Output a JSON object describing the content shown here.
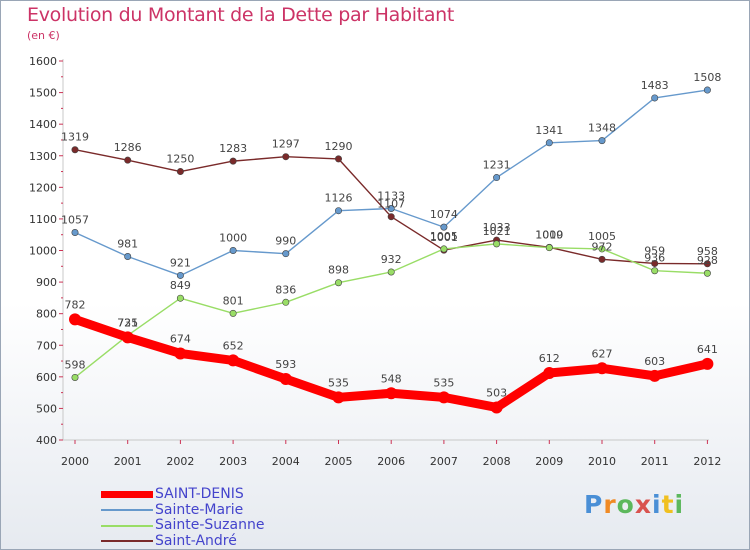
{
  "header": {
    "title": "Evolution du Montant de la Dette par Habitant",
    "unit": "(en €)"
  },
  "logo": {
    "text": "Proxiti",
    "colors": [
      "#4a8fd6",
      "#f08a24",
      "#5cb85c",
      "#d9534f",
      "#4a8fd6",
      "#f0c020",
      "#5cb85c"
    ]
  },
  "chart_data": {
    "type": "line",
    "x": [
      "2000",
      "2001",
      "2002",
      "2003",
      "2004",
      "2005",
      "2006",
      "2007",
      "2008",
      "2009",
      "2010",
      "2011",
      "2012"
    ],
    "ylim": [
      400,
      1600
    ],
    "yticks": [
      400,
      500,
      600,
      700,
      800,
      900,
      1000,
      1100,
      1200,
      1300,
      1400,
      1500,
      1600
    ],
    "grid": false,
    "legend": "bottom-left",
    "series": [
      {
        "name": "SAINT-DENIS",
        "color": "#ff0000",
        "values": [
          782,
          725,
          674,
          652,
          593,
          535,
          548,
          535,
          503,
          612,
          627,
          603,
          641
        ]
      },
      {
        "name": "Sainte-Marie",
        "color": "#6699cc",
        "values": [
          1057,
          981,
          921,
          1000,
          990,
          1126,
          1133,
          1074,
          1231,
          1341,
          1348,
          1483,
          1508
        ]
      },
      {
        "name": "Sainte-Suzanne",
        "color": "#99dd66",
        "values": [
          598,
          731,
          849,
          801,
          836,
          898,
          932,
          1005,
          1021,
          1009,
          1005,
          936,
          928
        ]
      },
      {
        "name": "Saint-André",
        "color": "#7a2a2a",
        "values": [
          1319,
          1286,
          1250,
          1283,
          1297,
          1290,
          1107,
          1001,
          1033,
          1010,
          972,
          959,
          958
        ]
      }
    ]
  }
}
